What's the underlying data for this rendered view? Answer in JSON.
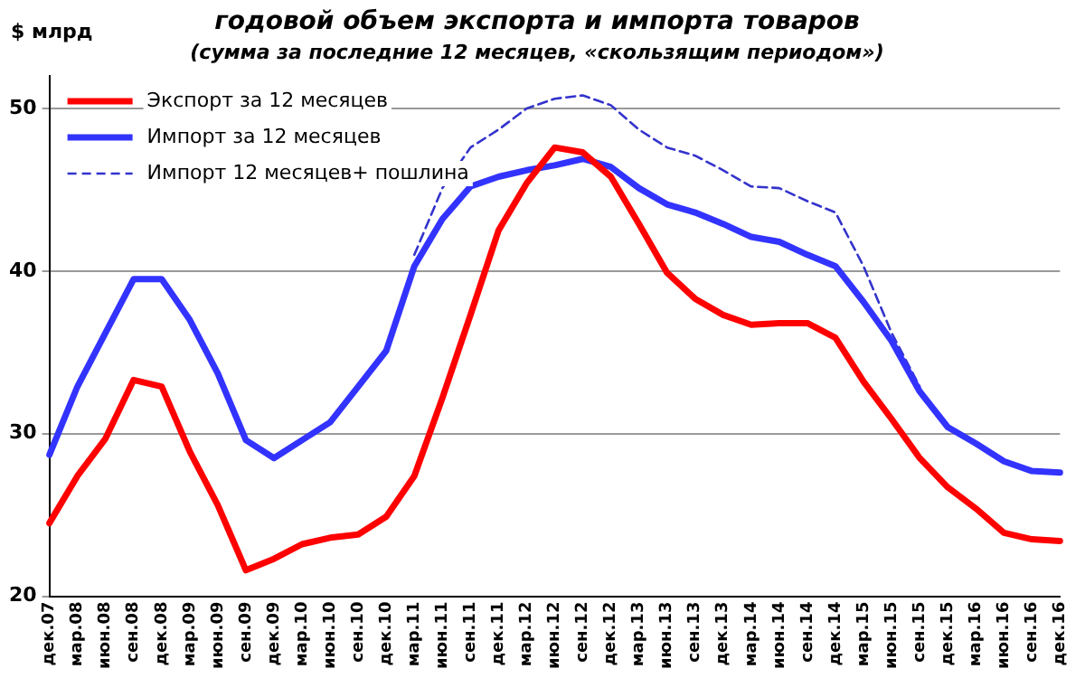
{
  "chart_data": {
    "type": "line",
    "title": "годовой объем экспорта и импорта товаров",
    "subtitle": "(сумма за последние 12 месяцев, «скользящим периодом»)",
    "ylabel": "$ млрд",
    "categories": [
      "дек.07",
      "мар.08",
      "июн.08",
      "сен.08",
      "дек.08",
      "мар.09",
      "июн.09",
      "сен.09",
      "дек.09",
      "мар.10",
      "июн.10",
      "сен.10",
      "дек.10",
      "мар.11",
      "июн.11",
      "сен.11",
      "дек.11",
      "мар.12",
      "июн.12",
      "сен.12",
      "дек.12",
      "мар.13",
      "июн.13",
      "сен.13",
      "дек.13",
      "мар.14",
      "июн.14",
      "сен.14",
      "дек.14",
      "мар.15",
      "июн.15",
      "сен.15",
      "дек.15",
      "мар.16",
      "июн.16",
      "сен.16",
      "дек.16"
    ],
    "series": [
      {
        "name": "Экспорт за 12 месяцев",
        "color": "#ff0000",
        "line_style": "solid",
        "values": [
          24.5,
          27.4,
          29.7,
          33.3,
          32.9,
          28.9,
          25.6,
          21.6,
          22.3,
          23.2,
          23.6,
          23.8,
          24.9,
          27.4,
          32.2,
          37.3,
          42.5,
          45.4,
          47.6,
          47.3,
          45.8,
          42.9,
          39.9,
          38.3,
          37.3,
          36.7,
          36.8,
          36.8,
          35.9,
          33.2,
          30.9,
          28.5,
          26.7,
          25.4,
          23.9,
          23.5,
          23.4
        ]
      },
      {
        "name": "Импорт за 12 месяцев",
        "color": "#3333ff",
        "line_style": "solid",
        "values": [
          28.7,
          32.9,
          36.2,
          39.5,
          39.5,
          37.0,
          33.7,
          29.6,
          28.5,
          29.6,
          30.7,
          32.9,
          35.1,
          40.3,
          43.2,
          45.2,
          45.8,
          46.2,
          46.5,
          46.9,
          46.4,
          45.1,
          44.1,
          43.6,
          42.9,
          42.1,
          41.8,
          41.0,
          40.3,
          38.1,
          35.7,
          32.6,
          30.4,
          29.4,
          28.3,
          27.7,
          27.6
        ]
      },
      {
        "name": "Импорт 12 месяцев+ пошлина",
        "color": "#3333cc",
        "line_style": "dashed",
        "values": [
          null,
          null,
          null,
          null,
          null,
          null,
          null,
          null,
          null,
          null,
          null,
          null,
          null,
          41.0,
          45.1,
          47.6,
          48.7,
          50.0,
          50.6,
          50.8,
          50.2,
          48.7,
          47.6,
          47.1,
          46.2,
          45.2,
          45.1,
          44.3,
          43.6,
          40.3,
          36.2,
          32.9,
          null,
          null,
          null,
          null,
          null
        ]
      }
    ],
    "ylim": [
      20,
      52
    ],
    "yticks": [
      20,
      30,
      40,
      50
    ],
    "grid": "y",
    "legend": "top left",
    "marker": "none"
  }
}
